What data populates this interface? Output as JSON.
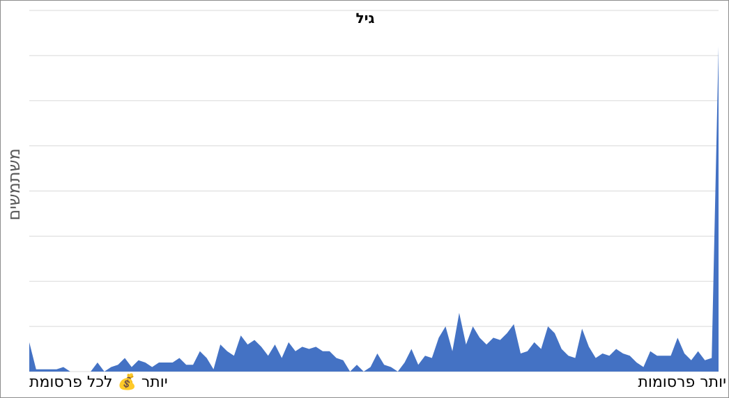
{
  "chart_data": {
    "type": "area",
    "title": "גיל",
    "xlabel_left": "יותר 💰 לכל פרסומת",
    "xlabel_right": "יותר פרסומות",
    "ylabel": "משתמשים",
    "grid": true,
    "ylim": [
      0,
      8
    ],
    "series": [
      {
        "color": "#4472c4",
        "values": [
          0.65,
          0.05,
          0.05,
          0.05,
          0.05,
          0.1,
          0,
          0,
          0,
          0,
          0.2,
          0,
          0.1,
          0.15,
          0.3,
          0.1,
          0.25,
          0.2,
          0.1,
          0.2,
          0.2,
          0.2,
          0.3,
          0.15,
          0.15,
          0.45,
          0.3,
          0.05,
          0.6,
          0.45,
          0.35,
          0.8,
          0.6,
          0.7,
          0.55,
          0.35,
          0.6,
          0.3,
          0.65,
          0.45,
          0.55,
          0.5,
          0.55,
          0.45,
          0.45,
          0.3,
          0.25,
          0,
          0.15,
          0,
          0.1,
          0.4,
          0.15,
          0.1,
          0,
          0.2,
          0.5,
          0.15,
          0.35,
          0.3,
          0.75,
          1.0,
          0.45,
          1.3,
          0.6,
          1.0,
          0.75,
          0.6,
          0.75,
          0.7,
          0.85,
          1.05,
          0.4,
          0.45,
          0.65,
          0.5,
          1.0,
          0.85,
          0.5,
          0.35,
          0.3,
          0.95,
          0.55,
          0.3,
          0.4,
          0.35,
          0.5,
          0.4,
          0.35,
          0.2,
          0.1,
          0.45,
          0.35,
          0.35,
          0.35,
          0.75,
          0.4,
          0.25,
          0.45,
          0.25,
          0.3,
          7.2
        ]
      }
    ]
  }
}
